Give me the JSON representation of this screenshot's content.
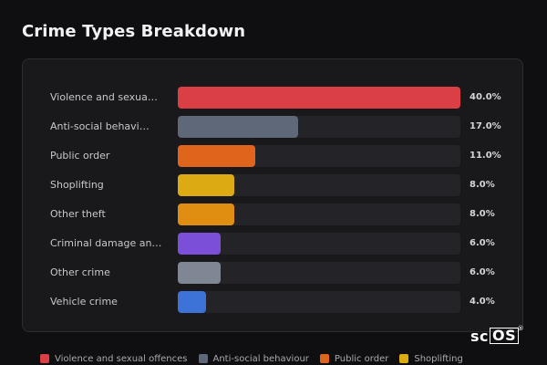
{
  "header": {
    "title": "Crime Types Breakdown"
  },
  "chart_data": {
    "type": "bar",
    "orientation": "horizontal",
    "categories": [
      "Violence and sexua…",
      "Anti-social behavi…",
      "Public order",
      "Shoplifting",
      "Other theft",
      "Criminal damage an…",
      "Other crime",
      "Vehicle crime"
    ],
    "values": [
      40.0,
      17.0,
      11.0,
      8.0,
      8.0,
      6.0,
      6.0,
      4.0
    ],
    "value_labels": [
      "40.0%",
      "17.0%",
      "11.0%",
      "8.0%",
      "8.0%",
      "6.0%",
      "6.0%",
      "4.0%"
    ],
    "unit": "%",
    "xlim": [
      0,
      40
    ],
    "colors": [
      "#d93f44",
      "#5f6878",
      "#e0651c",
      "#dcaa12",
      "#e08e12",
      "#7b4fd8",
      "#7f8794",
      "#3d72d6"
    ],
    "grid": false,
    "legend_position": "bottom",
    "legend": [
      {
        "label": "Violence and sexual offences",
        "color": "#d93f44"
      },
      {
        "label": "Anti-social behaviour",
        "color": "#5f6878"
      },
      {
        "label": "Public order",
        "color": "#e0651c"
      },
      {
        "label": "Shoplifting",
        "color": "#dcaa12"
      }
    ]
  },
  "branding": {
    "logo_text": "scOS",
    "logo_plain": "sc",
    "logo_boxed": "OS",
    "logo_mark": "®"
  }
}
